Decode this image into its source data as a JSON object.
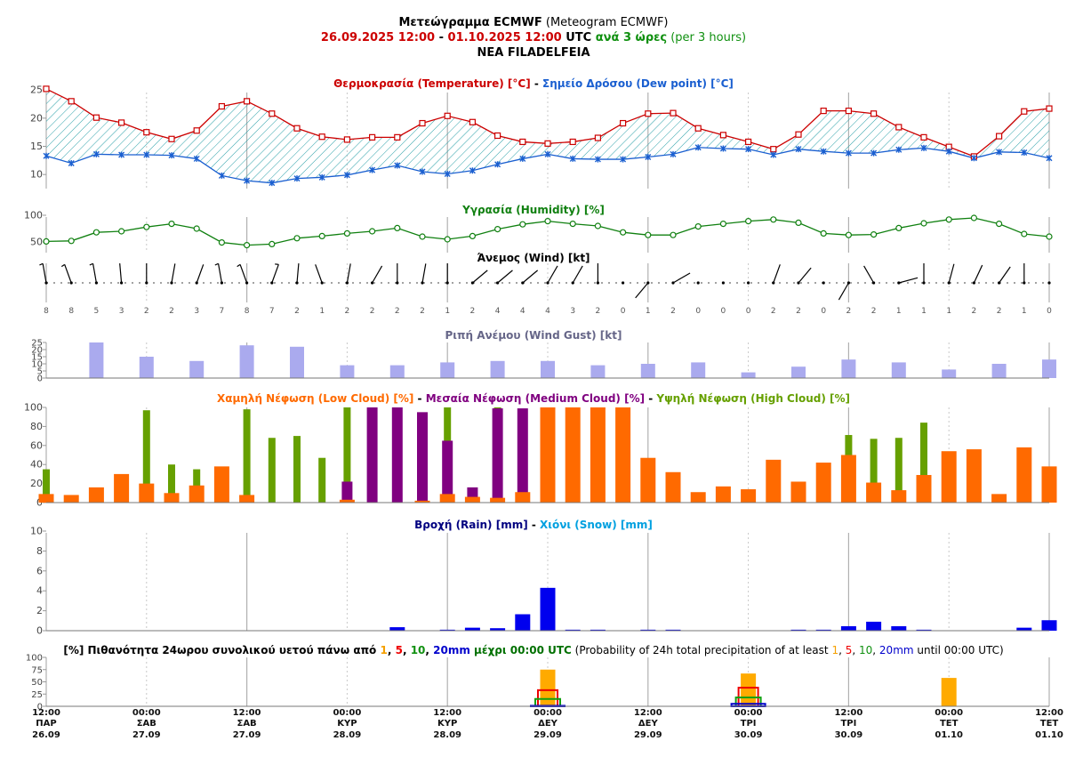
{
  "header": {
    "title_bold": "Μετεώγραμμα ECMWF",
    "title_rest": " (Meteogram ECMWF)",
    "range_start": "26.09.2025 12:00",
    "range_sep": " - ",
    "range_end": "01.10.2025 12:00",
    "utc": " UTC ",
    "step_bold": "ανά 3 ώρες",
    "step_rest": " (per 3 hours)",
    "location": "NEA FILADELFEIA"
  },
  "colors": {
    "temperature": "#cc0000",
    "dewpoint": "#1a5fd0",
    "humidity": "#108010",
    "gust": "#aaaaee",
    "low_cloud": "#ff6a00",
    "medium_cloud": "#800080",
    "high_cloud": "#66a000",
    "rain": "#0000ee",
    "snow": "#00a0e0"
  },
  "chart_data": [
    {
      "type": "line",
      "name": "temperature",
      "title_parts": [
        {
          "text": "Θερμοκρασία (Temperature) [°C]",
          "color": "#cc0000"
        },
        {
          "text": " - ",
          "color": "#000000"
        },
        {
          "text": "Σημείο Δρόσου (Dew point) [°C]",
          "color": "#1a5fd0"
        }
      ],
      "yticks": [
        "25",
        "20",
        "15",
        "10"
      ],
      "ylim": [
        7.5,
        25.5
      ],
      "series": [
        {
          "name": "Temperature",
          "values": [
            25.2,
            23.0,
            20.1,
            19.2,
            17.5,
            16.3,
            17.8,
            22.1,
            23.0,
            20.8,
            18.2,
            16.7,
            16.2,
            16.6,
            16.6,
            19.1,
            20.4,
            19.3,
            16.9,
            15.8,
            15.5,
            15.8,
            16.5,
            19.1,
            20.8,
            20.9,
            18.2,
            17.0,
            15.8,
            14.5,
            17.1,
            21.3,
            21.3,
            20.8,
            18.4,
            16.6,
            14.9,
            13.2,
            16.8,
            21.2,
            21.7
          ]
        },
        {
          "name": "Dew point",
          "values": [
            13.3,
            12.0,
            13.6,
            13.5,
            13.5,
            13.4,
            12.8,
            9.8,
            8.9,
            8.5,
            9.3,
            9.5,
            9.9,
            10.8,
            11.6,
            10.5,
            10.1,
            10.7,
            11.8,
            12.8,
            13.6,
            12.8,
            12.7,
            12.7,
            13.1,
            13.6,
            14.8,
            14.6,
            14.5,
            13.5,
            14.5,
            14.1,
            13.8,
            13.8,
            14.4,
            14.7,
            14.1,
            12.9,
            14.0,
            13.9,
            12.9
          ]
        }
      ]
    },
    {
      "type": "line",
      "name": "humidity",
      "title": "Υγρασία (Humidity) [%]",
      "yticks": [
        "100",
        "50"
      ],
      "ylim": [
        40,
        100
      ],
      "values": [
        51,
        52,
        68,
        70,
        78,
        84,
        75,
        49,
        44,
        46,
        57,
        61,
        66,
        70,
        76,
        60,
        55,
        61,
        74,
        83,
        89,
        84,
        80,
        68,
        63,
        63,
        79,
        84,
        89,
        92,
        86,
        66,
        63,
        64,
        76,
        85,
        92,
        95,
        84,
        65,
        60
      ]
    },
    {
      "type": "table",
      "name": "wind",
      "title": "Άνεμος (Wind) [kt]",
      "speed": [
        8,
        8,
        5,
        3,
        2,
        2,
        3,
        7,
        8,
        7,
        2,
        1,
        2,
        2,
        2,
        2,
        1,
        2,
        4,
        4,
        4,
        3,
        2,
        0,
        1,
        2,
        0,
        0,
        0,
        2,
        2,
        0,
        2,
        2,
        1,
        1,
        1,
        2,
        2,
        1,
        0
      ],
      "direction_deg": [
        350,
        340,
        350,
        355,
        0,
        10,
        20,
        350,
        340,
        20,
        5,
        340,
        10,
        30,
        0,
        10,
        0,
        50,
        50,
        50,
        30,
        30,
        0,
        0,
        220,
        60,
        0,
        0,
        0,
        20,
        40,
        0,
        210,
        330,
        75,
        0,
        15,
        25,
        35,
        0,
        0
      ]
    },
    {
      "type": "bar",
      "name": "gust",
      "title": "Ριπή Ανέμου (Wind Gust) [kt]",
      "yticks": [
        "25",
        "20",
        "15",
        "10",
        "5",
        "0"
      ],
      "ylim": [
        0,
        25
      ],
      "values": [
        null,
        null,
        25,
        null,
        15,
        null,
        12,
        null,
        23,
        null,
        22,
        null,
        9,
        null,
        9,
        null,
        11,
        null,
        12,
        null,
        12,
        null,
        9,
        null,
        10,
        null,
        11,
        null,
        4,
        null,
        8,
        null,
        13,
        null,
        11,
        null,
        6,
        null,
        10,
        null,
        13
      ]
    },
    {
      "type": "bar",
      "name": "clouds",
      "title_parts": [
        {
          "text": "Χαμηλή Νέφωση (Low Cloud) [%]",
          "color": "#ff6a00"
        },
        {
          "text": " - ",
          "color": "#000000"
        },
        {
          "text": "Μεσαία Νέφωση (Medium Cloud) [%]",
          "color": "#800080"
        },
        {
          "text": " - ",
          "color": "#000000"
        },
        {
          "text": "Υψηλή Νέφωση (High Cloud) [%]",
          "color": "#66a000"
        }
      ],
      "yticks": [
        "100",
        "80",
        "60",
        "40",
        "20",
        "0"
      ],
      "ylim": [
        0,
        100
      ],
      "series": [
        {
          "name": "High Cloud",
          "values": [
            35,
            0,
            0,
            0,
            97,
            40,
            35,
            0,
            98,
            68,
            70,
            47,
            100,
            0,
            0,
            0,
            100,
            0,
            100,
            0,
            0,
            0,
            0,
            0,
            0,
            0,
            0,
            0,
            0,
            0,
            0,
            0,
            71,
            67,
            68,
            84,
            0,
            0,
            0,
            0,
            0
          ]
        },
        {
          "name": "Medium Cloud",
          "values": [
            0,
            0,
            0,
            0,
            0,
            0,
            0,
            0,
            0,
            0,
            0,
            0,
            22,
            100,
            100,
            95,
            65,
            16,
            99,
            99,
            0,
            0,
            0,
            0,
            0,
            0,
            0,
            0,
            0,
            0,
            0,
            0,
            0,
            0,
            0,
            0,
            0,
            0,
            0,
            0,
            0
          ]
        },
        {
          "name": "Low Cloud",
          "values": [
            9,
            8,
            16,
            30,
            20,
            10,
            18,
            38,
            8,
            0,
            0,
            0,
            3,
            0,
            0,
            2,
            9,
            6,
            5,
            11,
            100,
            100,
            100,
            100,
            47,
            32,
            11,
            17,
            14,
            45,
            22,
            42,
            50,
            21,
            13,
            29,
            54,
            56,
            9,
            58,
            38
          ]
        }
      ]
    },
    {
      "type": "bar",
      "name": "precipitation",
      "title_parts": [
        {
          "text": "Βροχή (Rain) [mm]",
          "color": "#000080"
        },
        {
          "text": " - ",
          "color": "#000000"
        },
        {
          "text": "Χιόνι (Snow) [mm]",
          "color": "#00a0e0"
        }
      ],
      "yticks": [
        "10",
        "8",
        "6",
        "4",
        "2",
        "0"
      ],
      "ylim": [
        0,
        10
      ],
      "values": [
        0,
        0,
        0,
        0,
        0,
        0,
        0,
        0,
        0,
        0,
        0,
        0,
        0,
        0,
        0.35,
        0,
        0.1,
        0.3,
        0.25,
        1.65,
        4.3,
        0.1,
        0.1,
        0,
        0.1,
        0.1,
        0,
        0,
        0,
        0,
        0.1,
        0.1,
        0.45,
        0.9,
        0.45,
        0.1,
        0,
        0,
        0,
        0.3,
        1.05
      ]
    },
    {
      "type": "bar",
      "name": "probability",
      "title_parts": [
        {
          "text": "[%] Πιθανότητα 24ωρου συνολικού υετού πάνω από ",
          "color": "#000000",
          "bold": true
        },
        {
          "text": "1",
          "color": "#f5a000",
          "bold": true
        },
        {
          "text": ", ",
          "color": "#000000",
          "bold": true
        },
        {
          "text": "5",
          "color": "#ee0000",
          "bold": true
        },
        {
          "text": ", ",
          "color": "#000000",
          "bold": true
        },
        {
          "text": "10",
          "color": "#109010",
          "bold": true
        },
        {
          "text": ", ",
          "color": "#000000",
          "bold": true
        },
        {
          "text": "20mm",
          "color": "#0000cc",
          "bold": true
        },
        {
          "text": " μέχρι 00:00 UTC",
          "color": "#007000",
          "bold": true
        },
        {
          "text": " (Probability of 24h total precipitation of at least ",
          "color": "#000000"
        },
        {
          "text": "1",
          "color": "#f5a000"
        },
        {
          "text": ", ",
          "color": "#000000"
        },
        {
          "text": "5",
          "color": "#ee0000"
        },
        {
          "text": ", ",
          "color": "#000000"
        },
        {
          "text": "10",
          "color": "#109010"
        },
        {
          "text": ", ",
          "color": "#000000"
        },
        {
          "text": "20mm",
          "color": "#0000cc"
        },
        {
          "text": " until 00:00 UTC)",
          "color": "#000000"
        }
      ],
      "yticks": [
        "100",
        "75",
        "50",
        "25",
        "0"
      ],
      "ylim": [
        0,
        100
      ],
      "groups": [
        {
          "time": "29.09 00:00",
          "p1": 75,
          "p5": 33,
          "p10": 15,
          "p20": 1
        },
        {
          "time": "30.09 00:00",
          "p1": 67,
          "p5": 38,
          "p10": 18,
          "p20": 5
        },
        {
          "time": "01.10 00:00",
          "p1": 58,
          "p5": 0,
          "p10": 0,
          "p20": 0
        }
      ]
    }
  ],
  "x_axis": [
    {
      "time": "12:00",
      "day": "ΠΑΡ",
      "date": "26.09"
    },
    {
      "time": "00:00",
      "day": "ΣΑΒ",
      "date": "27.09"
    },
    {
      "time": "12:00",
      "day": "ΣΑΒ",
      "date": "27.09"
    },
    {
      "time": "00:00",
      "day": "ΚΥΡ",
      "date": "28.09"
    },
    {
      "time": "12:00",
      "day": "ΚΥΡ",
      "date": "28.09"
    },
    {
      "time": "00:00",
      "day": "ΔΕΥ",
      "date": "29.09"
    },
    {
      "time": "12:00",
      "day": "ΔΕΥ",
      "date": "29.09"
    },
    {
      "time": "00:00",
      "day": "ΤΡΙ",
      "date": "30.09"
    },
    {
      "time": "12:00",
      "day": "ΤΡΙ",
      "date": "30.09"
    },
    {
      "time": "00:00",
      "day": "ΤΕΤ",
      "date": "01.10"
    },
    {
      "time": "12:00",
      "day": "ΤΕΤ",
      "date": "01.10"
    }
  ]
}
